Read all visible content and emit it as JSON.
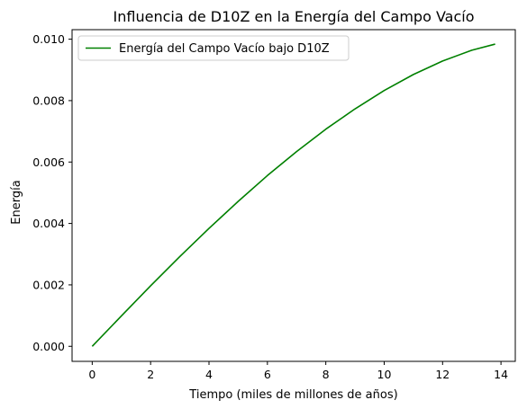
{
  "chart_data": {
    "type": "line",
    "title": "Influencia de D10Z en la Energía del Campo Vacío",
    "xlabel": "Tiempo (miles de millones de años)",
    "ylabel": "Energía",
    "xlim": [
      -0.69,
      14.49
    ],
    "ylim": [
      -0.00049,
      0.01031
    ],
    "x_ticks": [
      0,
      2,
      4,
      6,
      8,
      10,
      12,
      14
    ],
    "x_tick_labels": [
      "0",
      "2",
      "4",
      "6",
      "8",
      "10",
      "12",
      "14"
    ],
    "y_ticks": [
      0.0,
      0.002,
      0.004,
      0.006,
      0.008,
      0.01
    ],
    "y_tick_labels": [
      "0.000",
      "0.002",
      "0.004",
      "0.006",
      "0.008",
      "0.010"
    ],
    "grid": false,
    "legend_position": "upper-left",
    "series": [
      {
        "name": "Energía del Campo Vacío bajo D10Z",
        "color": "#008000",
        "x": [
          0,
          1,
          2,
          3,
          4,
          5,
          6,
          7,
          8,
          9,
          10,
          11,
          12,
          13,
          13.8
        ],
        "y": [
          0.0,
          0.00099,
          0.00197,
          0.00292,
          0.00384,
          0.00472,
          0.00556,
          0.00634,
          0.00707,
          0.00773,
          0.00833,
          0.00885,
          0.00929,
          0.00964,
          0.00984
        ]
      }
    ]
  }
}
